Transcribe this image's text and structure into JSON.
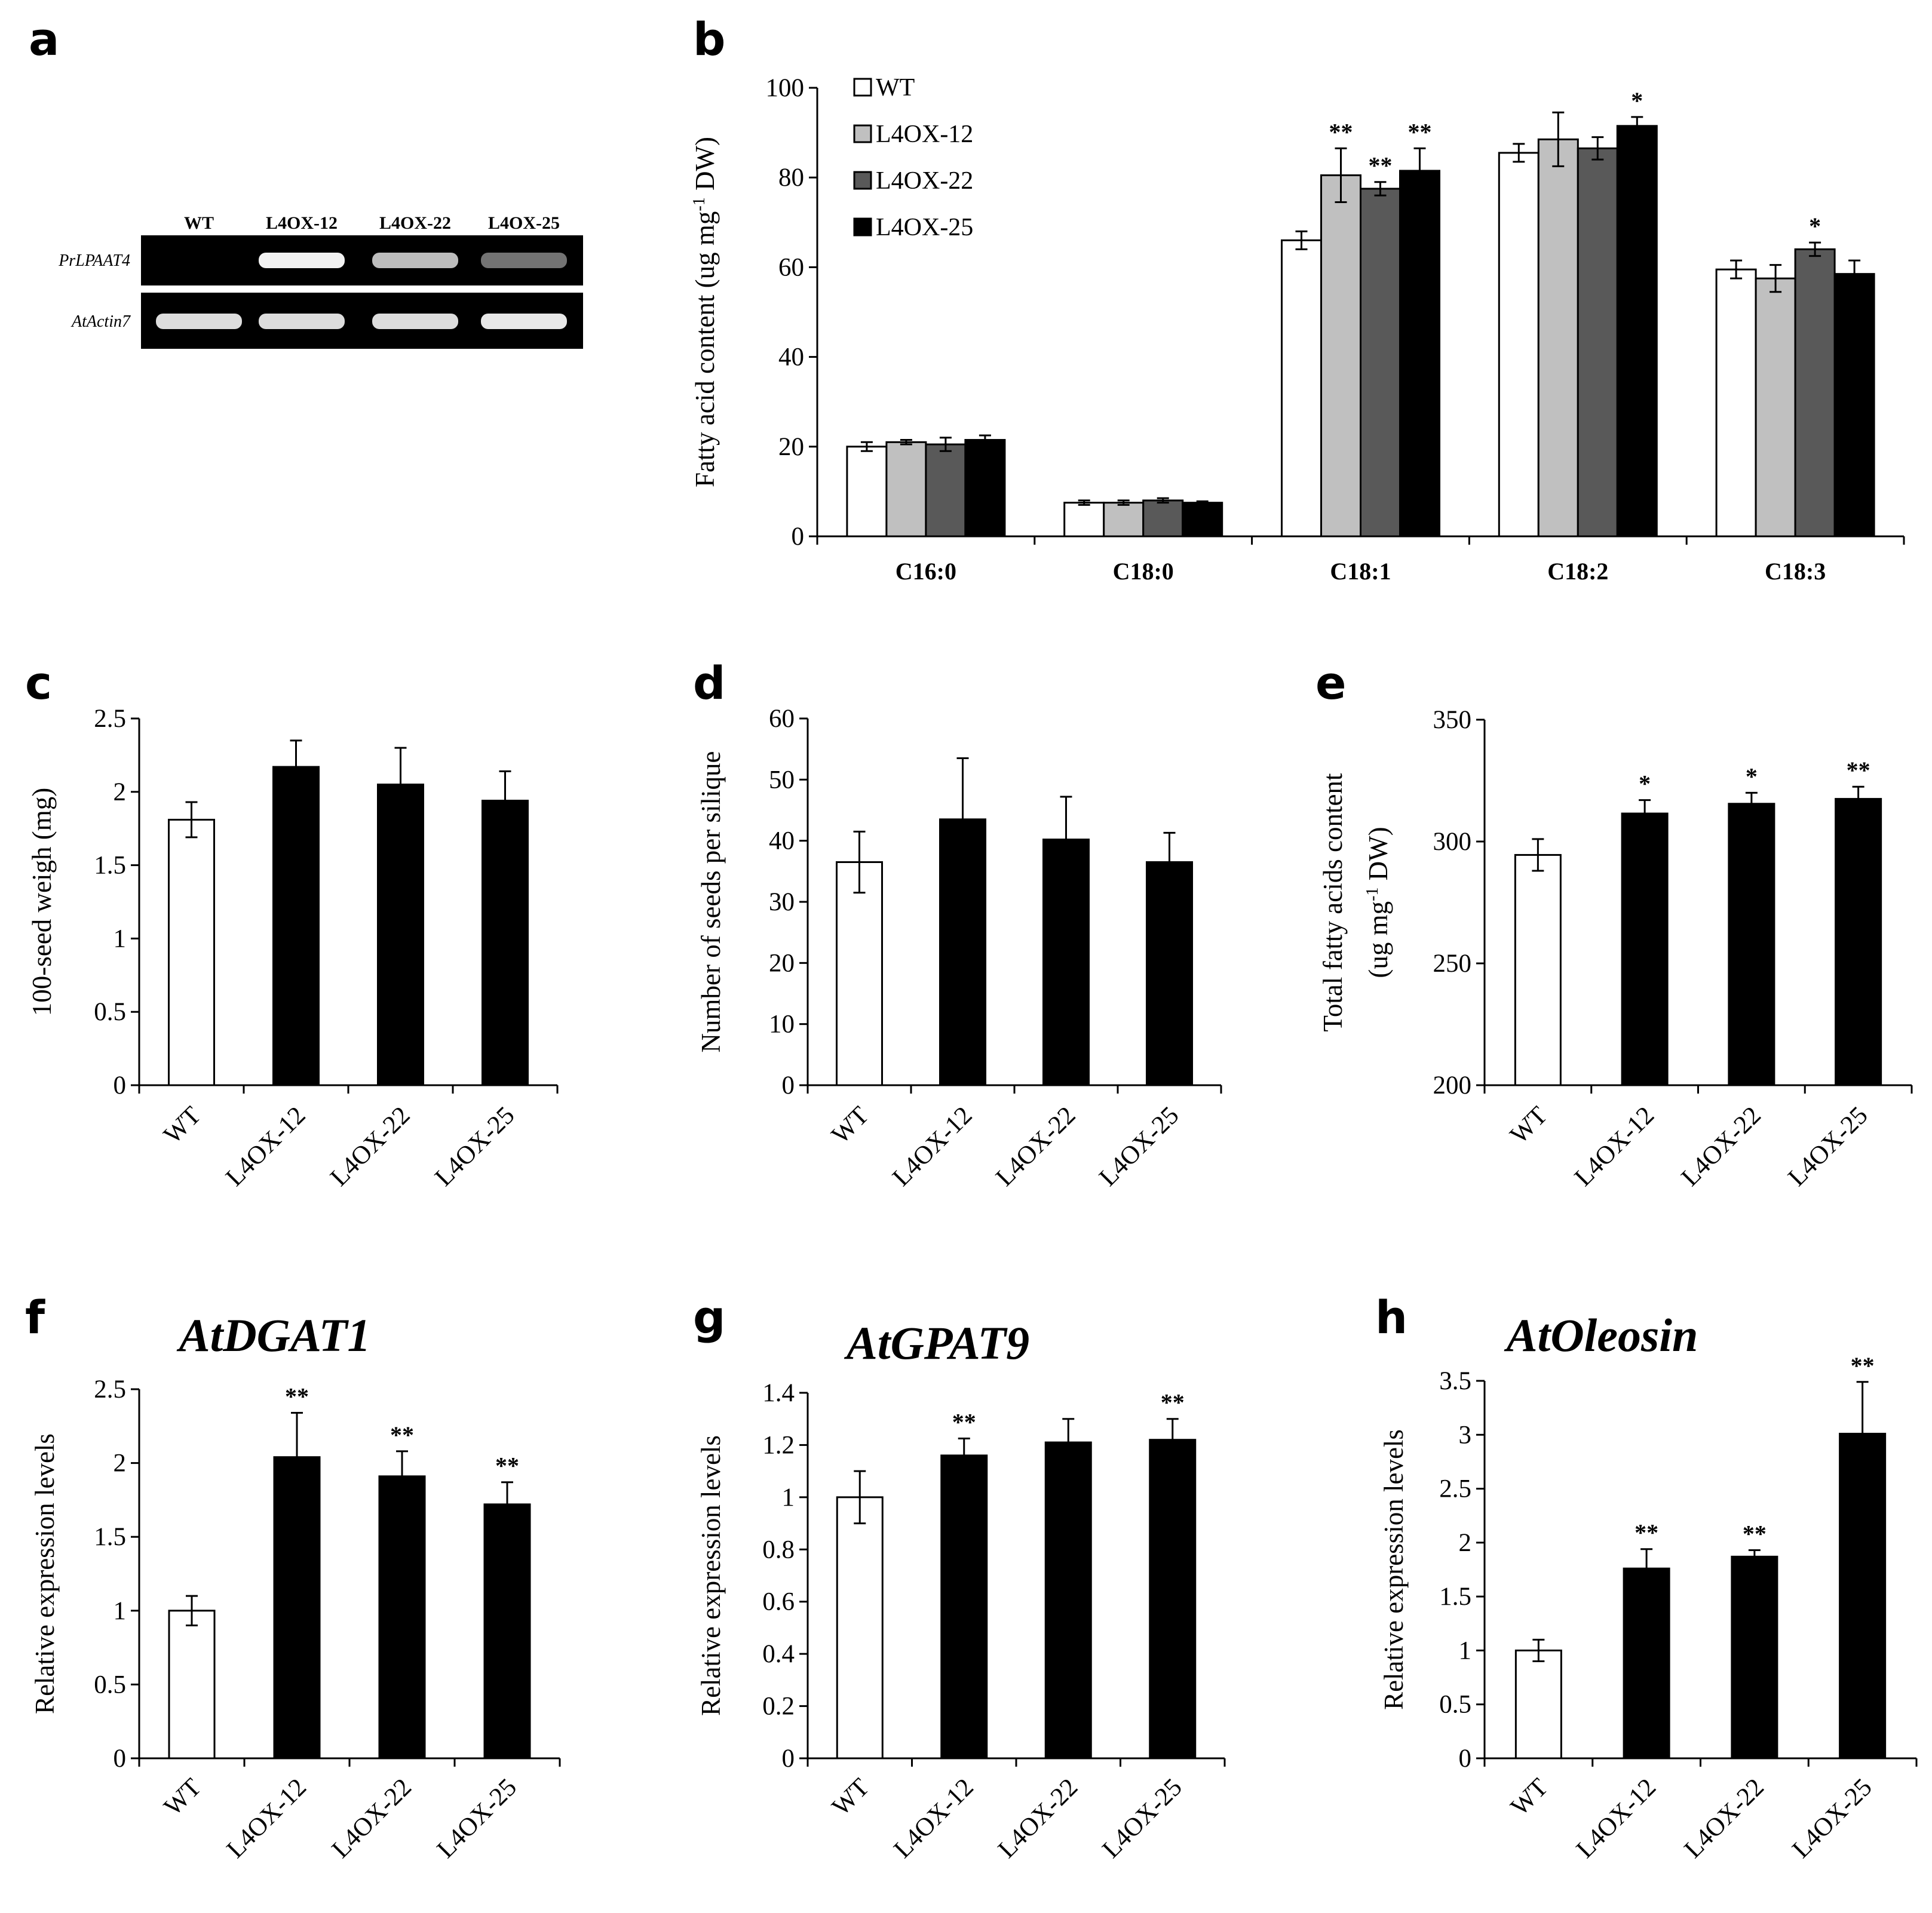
{
  "colors": {
    "wt_fill": "#ffffff",
    "l4ox12_fill": "#c0c0c0",
    "l4ox22_fill": "#595959",
    "l4ox25_fill": "#000000",
    "line": "#000000"
  },
  "panels": {
    "a": {
      "label": "a"
    }
  },
  "gel": {
    "lanes": [
      "WT",
      "L4OX-12",
      "L4OX-22",
      "L4OX-25"
    ],
    "genes": [
      "PrLPAAT4",
      "AtActin7"
    ],
    "band_intensity": [
      [
        0.0,
        0.95,
        0.7,
        0.35
      ],
      [
        0.85,
        0.85,
        0.85,
        0.9
      ]
    ]
  },
  "chart_data": [
    {
      "id": "b",
      "panel_label": "b",
      "type": "bar",
      "ylabel_parts": [
        "Fatty acid content (ug mg",
        "-1",
        " DW)"
      ],
      "ylim": [
        0,
        100
      ],
      "yticks": [
        "0",
        "20",
        "40",
        "60",
        "80",
        "100"
      ],
      "categories": [
        "C16:0",
        "C18:0",
        "C18:1",
        "C18:2",
        "C18:3"
      ],
      "legend_position": "top-left",
      "series": [
        {
          "name": "WT",
          "values": [
            20,
            7.5,
            66,
            85.5,
            59.5
          ],
          "errors": [
            1,
            0.5,
            2,
            2,
            2
          ],
          "sig": [
            "",
            "",
            "",
            "",
            ""
          ]
        },
        {
          "name": "L4OX-12",
          "values": [
            21,
            7.5,
            80.5,
            88.5,
            57.5
          ],
          "errors": [
            0.5,
            0.5,
            6,
            6,
            3
          ],
          "sig": [
            "",
            "",
            "**",
            "",
            ""
          ]
        },
        {
          "name": "L4OX-22",
          "values": [
            20.5,
            8,
            77.5,
            86.5,
            64
          ],
          "errors": [
            1.5,
            0.5,
            1.5,
            2.5,
            1.5
          ],
          "sig": [
            "",
            "",
            "**",
            "",
            "*"
          ]
        },
        {
          "name": "L4OX-25",
          "values": [
            21.5,
            7.5,
            81.5,
            91.5,
            58.5
          ],
          "errors": [
            1,
            0.3,
            5,
            2,
            3
          ],
          "sig": [
            "",
            "",
            "**",
            "*",
            ""
          ]
        }
      ]
    },
    {
      "id": "c",
      "panel_label": "c",
      "type": "bar",
      "ylabel": "100-seed weigh (mg)",
      "ylim": [
        0,
        2.5
      ],
      "yticks": [
        "0",
        "0.5",
        "1",
        "1.5",
        "2",
        "2.5"
      ],
      "categories": [
        "WT",
        "L4OX-12",
        "L4OX-22",
        "L4OX-25"
      ],
      "values": [
        1.81,
        2.17,
        2.05,
        1.94
      ],
      "errors": [
        0.12,
        0.18,
        0.25,
        0.2
      ],
      "sig": [
        "",
        "",
        "",
        ""
      ]
    },
    {
      "id": "d",
      "panel_label": "d",
      "type": "bar",
      "ylabel": "Number of seeds per silique",
      "ylim": [
        0,
        60
      ],
      "yticks": [
        "0",
        "10",
        "20",
        "30",
        "40",
        "50",
        "60"
      ],
      "categories": [
        "WT",
        "L4OX-12",
        "L4OX-22",
        "L4OX-25"
      ],
      "values": [
        36.5,
        43.5,
        40.2,
        36.5
      ],
      "errors": [
        5,
        10,
        7,
        4.8
      ],
      "sig": [
        "",
        "",
        "",
        ""
      ]
    },
    {
      "id": "e",
      "panel_label": "e",
      "type": "bar",
      "ylabel": "Total fatty acids content",
      "ylabel2_parts": [
        "(ug mg",
        "-1",
        " DW)"
      ],
      "ylim": [
        200,
        350
      ],
      "yticks": [
        "200",
        "250",
        "300",
        "350"
      ],
      "categories": [
        "WT",
        "L4OX-12",
        "L4OX-22",
        "L4OX-25"
      ],
      "values": [
        294.5,
        311.5,
        315.5,
        317.5
      ],
      "errors": [
        6.5,
        5.5,
        4.5,
        5
      ],
      "sig": [
        "",
        "*",
        "*",
        "**"
      ]
    },
    {
      "id": "f",
      "panel_label": "f",
      "title": "AtDGAT1",
      "type": "bar",
      "ylabel": "Relative expression levels",
      "ylim": [
        0,
        2.5
      ],
      "yticks": [
        "0",
        "0.5",
        "1",
        "1.5",
        "2",
        "2.5"
      ],
      "categories": [
        "WT",
        "L4OX-12",
        "L4OX-22",
        "L4OX-25"
      ],
      "values": [
        1.0,
        2.04,
        1.91,
        1.72
      ],
      "errors": [
        0.1,
        0.3,
        0.17,
        0.15
      ],
      "sig": [
        "",
        "**",
        "**",
        "**"
      ]
    },
    {
      "id": "g",
      "panel_label": "g",
      "title": "AtGPAT9",
      "type": "bar",
      "ylabel": "Relative expression levels",
      "ylim": [
        0,
        1.4
      ],
      "yticks": [
        "0",
        "0.2",
        "0.4",
        "0.6",
        "0.8",
        "1",
        "1.2",
        "1.4"
      ],
      "categories": [
        "WT",
        "L4OX-12",
        "L4OX-22",
        "L4OX-25"
      ],
      "values": [
        1.0,
        1.16,
        1.21,
        1.22
      ],
      "errors": [
        0.1,
        0.065,
        0.09,
        0.08
      ],
      "sig": [
        "",
        "**",
        "",
        "**"
      ]
    },
    {
      "id": "h",
      "panel_label": "h",
      "title": "AtOleosin",
      "type": "bar",
      "ylabel": "Relative expression levels",
      "ylim": [
        0,
        3.5
      ],
      "yticks": [
        "0",
        "0.5",
        "1",
        "1.5",
        "2",
        "2.5",
        "3",
        "3.5"
      ],
      "categories": [
        "WT",
        "L4OX-12",
        "L4OX-22",
        "L4OX-25"
      ],
      "values": [
        1.0,
        1.76,
        1.87,
        3.01
      ],
      "errors": [
        0.1,
        0.18,
        0.06,
        0.48
      ],
      "sig": [
        "",
        "**",
        "**",
        "**"
      ]
    }
  ]
}
